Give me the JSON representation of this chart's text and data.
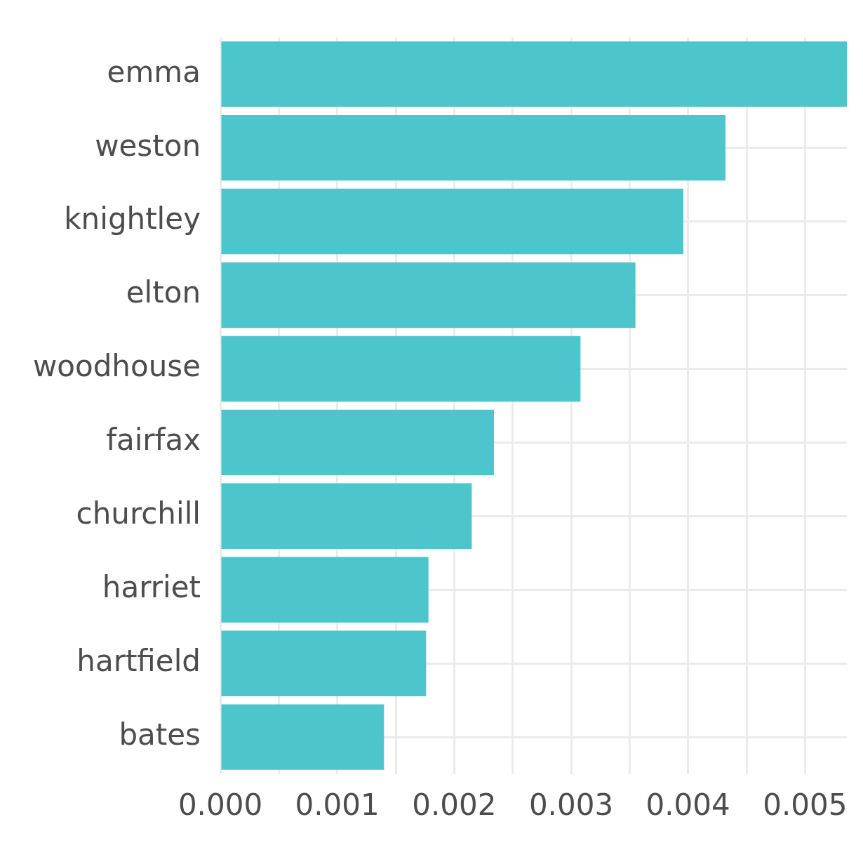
{
  "chart_data": {
    "type": "bar",
    "orientation": "horizontal",
    "categories": [
      "emma",
      "weston",
      "knightley",
      "elton",
      "woodhouse",
      "fairfax",
      "churchill",
      "harriet",
      "hartfield",
      "bates"
    ],
    "values": [
      0.00536,
      0.00432,
      0.00396,
      0.00355,
      0.00308,
      0.00234,
      0.00215,
      0.00178,
      0.00176,
      0.0014
    ],
    "color": "#4cc5cc",
    "xlim": [
      0,
      0.00536
    ],
    "xticks": [
      {
        "value": 0,
        "label": "0.000"
      },
      {
        "value": 0.0005,
        "label": null
      },
      {
        "value": 0.001,
        "label": "0.001"
      },
      {
        "value": 0.0015,
        "label": null
      },
      {
        "value": 0.002,
        "label": "0.002"
      },
      {
        "value": 0.0025,
        "label": null
      },
      {
        "value": 0.003,
        "label": "0.003"
      },
      {
        "value": 0.0035,
        "label": null
      },
      {
        "value": 0.004,
        "label": "0.004"
      },
      {
        "value": 0.0045,
        "label": null
      },
      {
        "value": 0.005,
        "label": "0.005"
      }
    ],
    "grid": true,
    "legend": false
  }
}
